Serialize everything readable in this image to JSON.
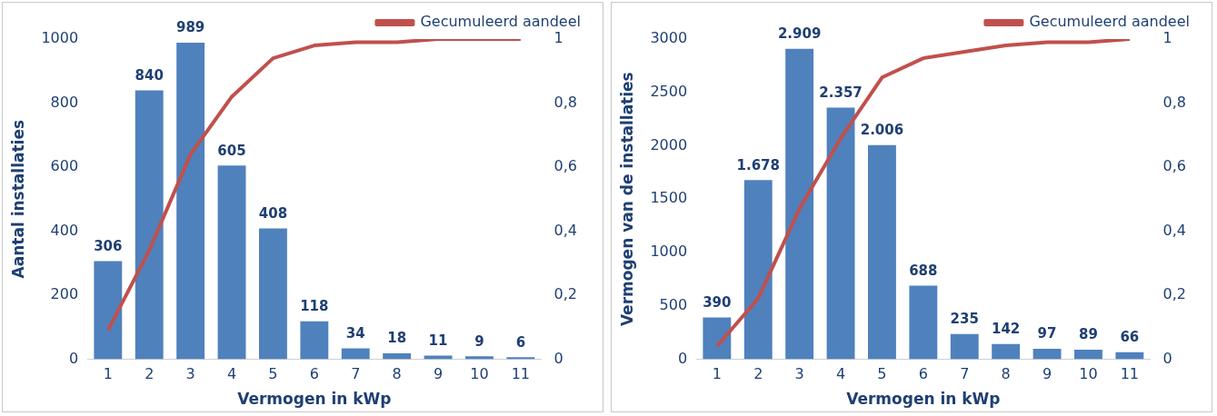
{
  "chart_data": [
    {
      "type": "bar",
      "categories": [
        "1",
        "2",
        "3",
        "4",
        "5",
        "6",
        "7",
        "8",
        "9",
        "10",
        "11"
      ],
      "xlabel": "Vermogen in kWp",
      "ylabel": "Aantal installaties",
      "ylim": [
        0,
        1000
      ],
      "yticks": [
        0,
        200,
        400,
        600,
        800,
        1000
      ],
      "y2lim": [
        0,
        1
      ],
      "y2ticks": [
        {
          "value": 0,
          "label": "0"
        },
        {
          "value": 0.2,
          "label": "0,2"
        },
        {
          "value": 0.4,
          "label": "0,4"
        },
        {
          "value": 0.6,
          "label": "0,6"
        },
        {
          "value": 0.8,
          "label": "0,8"
        },
        {
          "value": 1,
          "label": "1"
        }
      ],
      "grid": false,
      "legend": "top right",
      "series": [
        {
          "color": "#4f81bd",
          "values": [
            306,
            840,
            989,
            605,
            408,
            118,
            34,
            18,
            11,
            9,
            6
          ],
          "value_labels": [
            "306",
            "840",
            "989",
            "605",
            "408",
            "118",
            "34",
            "18",
            "11",
            "9",
            "6"
          ]
        },
        {
          "type": "line",
          "axis": "y2",
          "name": "Gecumuleerd aandeel",
          "color": "#c0504d",
          "marker": "none",
          "values": [
            0.09,
            0.34,
            0.64,
            0.82,
            0.94,
            0.98,
            0.99,
            0.99,
            1.0,
            1.0,
            1.0
          ]
        }
      ]
    },
    {
      "type": "bar",
      "categories": [
        "1",
        "2",
        "3",
        "4",
        "5",
        "6",
        "7",
        "8",
        "9",
        "10",
        "11"
      ],
      "xlabel": "Vermogen in kWp",
      "ylabel": "Vermogen van de installaties",
      "ylim": [
        0,
        3000
      ],
      "yticks": [
        0,
        500,
        1000,
        1500,
        2000,
        2500,
        3000
      ],
      "y2lim": [
        0,
        1
      ],
      "y2ticks": [
        {
          "value": 0,
          "label": "0"
        },
        {
          "value": 0.2,
          "label": "0,2"
        },
        {
          "value": 0.4,
          "label": "0,4"
        },
        {
          "value": 0.6,
          "label": "0,6"
        },
        {
          "value": 0.8,
          "label": "0,8"
        },
        {
          "value": 1,
          "label": "1"
        }
      ],
      "grid": false,
      "legend": "top right",
      "series": [
        {
          "color": "#4f81bd",
          "values": [
            390,
            1678,
            2909,
            2357,
            2006,
            688,
            235,
            142,
            97,
            89,
            66
          ],
          "value_labels": [
            "390",
            "1.678",
            "2.909",
            "2.357",
            "2.006",
            "688",
            "235",
            "142",
            "97",
            "89",
            "66"
          ]
        },
        {
          "type": "line",
          "axis": "y2",
          "name": "Gecumuleerd aandeel",
          "color": "#c0504d",
          "marker": "none",
          "values": [
            0.04,
            0.19,
            0.47,
            0.69,
            0.88,
            0.94,
            0.96,
            0.98,
            0.99,
            0.99,
            1.0
          ]
        }
      ]
    }
  ]
}
